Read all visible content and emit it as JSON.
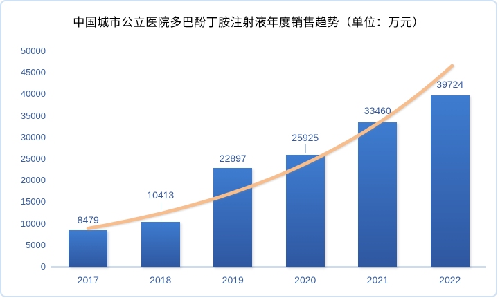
{
  "chart_data": {
    "type": "bar",
    "title": "中国城市公立医院多巴酚丁胺注射液年度销售趋势（单位：万元）",
    "categories": [
      "2017",
      "2018",
      "2019",
      "2020",
      "2021",
      "2022"
    ],
    "values": [
      8479,
      10413,
      22897,
      25925,
      33460,
      39724
    ],
    "xlabel": "",
    "ylabel": "",
    "ylim": [
      0,
      50000
    ],
    "ytick_step": 5000,
    "grid": false,
    "legend": false,
    "data_labels": true,
    "trendline": {
      "type": "exponential",
      "start_category": "2017",
      "start_value": 8900,
      "end_category": "2022",
      "end_value": 46600
    },
    "colors": {
      "bar_gradient_top": "#3e7cd0",
      "bar_gradient_bottom": "#2f57a0",
      "trendline": "#f6be8e",
      "tick_label": "#3a5f9f",
      "data_label": "#35599c",
      "axis_line": "#cbdcf1",
      "frame_border": "#cfe0f2",
      "title": "#000000",
      "background": "#ffffff"
    }
  }
}
